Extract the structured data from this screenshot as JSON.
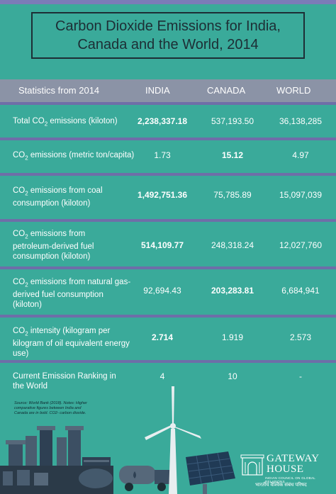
{
  "title": "Carbon Dioxide Emissions for India, Canada and the World, 2014",
  "header": {
    "stat": "Statistics from 2014",
    "india": "INDIA",
    "canada": "CANADA",
    "world": "WORLD"
  },
  "rows": [
    {
      "label": "Total CO2 emissions (kiloton)",
      "india": "2,238,337.18",
      "canada": "537,193.50",
      "world": "36,138,285"
    },
    {
      "label": "CO2 emissions (metric ton/capita)",
      "india": "1.73",
      "canada": "15.12",
      "world": "4.97"
    },
    {
      "label": "CO2 emissions from coal consumption (kiloton)",
      "india": "1,492,751.36",
      "canada": "75,785.89",
      "world": "15,097,039"
    },
    {
      "label": "CO2 emissions from petroleum-derived fuel consumption (kiloton)",
      "india": "514,109.77",
      "canada": "248,318.24",
      "world": "12,027,760"
    },
    {
      "label": "CO2 emissions from natural gas-derived fuel consumption (kiloton)",
      "india": "92,694.43",
      "canada": "203,283.81",
      "world": "6,684,941"
    },
    {
      "label": "CO2 intensity (kilogram per kilogram of oil equivalent energy use)",
      "india": "2.714",
      "canada": "1.919",
      "world": "2.573"
    },
    {
      "label": "Current Emission Ranking in the World",
      "india": "4",
      "canada": "10",
      "world": "-"
    }
  ],
  "source_text": "Source: World Bank (2018). Notes: Higher comparative figures between India and Canada are in bold. CO2- carbon dioxide.",
  "logo": {
    "wordmark": "GATEWAY HOUSE",
    "subtitle": "INDIAN COUNCIL ON GLOBAL RELATIONS",
    "hindi": "भारतीय वैश्विक संबंध परिषद"
  },
  "colors": {
    "background": "#3aaa9a",
    "header_band": "#8b93a6",
    "separator": "#6e6ea8",
    "title_text": "#1d2e35"
  }
}
